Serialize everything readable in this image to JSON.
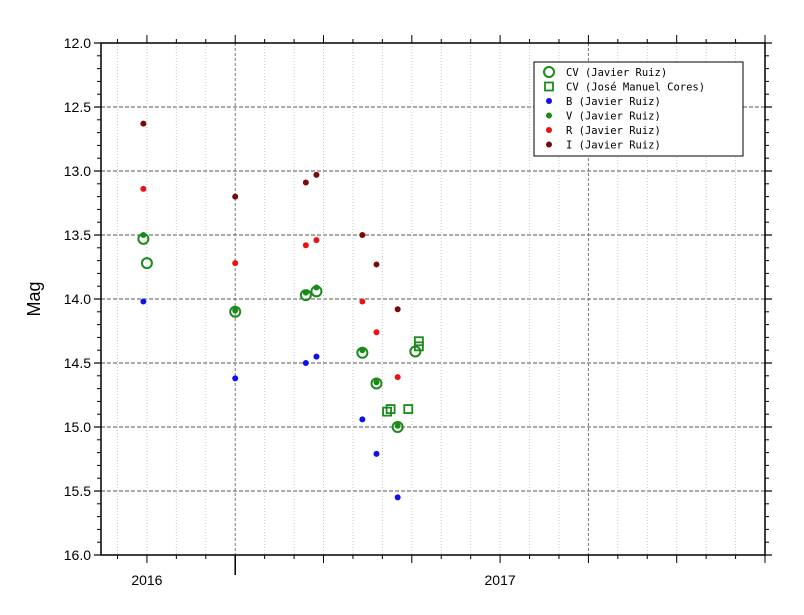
{
  "chart_data": {
    "type": "scatter",
    "title": "",
    "ylabel": "Mag",
    "xlabel": "",
    "y_inverted": true,
    "ylim": [
      12.0,
      16.0
    ],
    "y_ticks": [
      "12.0",
      "12.5",
      "13.0",
      "13.5",
      "14.0",
      "14.5",
      "15.0",
      "15.5",
      "16.0"
    ],
    "x_range_years": [
      2015.87,
      2017.75
    ],
    "x_tick_labels": [
      {
        "value": 2016.0,
        "label": "2016"
      },
      {
        "value": 2017.0,
        "label": "2017"
      }
    ],
    "grid": true,
    "legend_position": "top-right",
    "colors": {
      "cv": "#1a8a1a",
      "B": "#1010ee",
      "V": "#1a8a1a",
      "R": "#ee1010",
      "I": "#7a0a0a"
    },
    "series": [
      {
        "name": "CV (Javier Ruiz)",
        "marker": "open-circle",
        "color": "#1a8a1a",
        "points": [
          [
            2015.99,
            13.53
          ],
          [
            2016.0,
            13.72
          ],
          [
            2016.25,
            14.1
          ],
          [
            2016.45,
            13.97
          ],
          [
            2016.48,
            13.94
          ],
          [
            2016.61,
            14.42
          ],
          [
            2016.65,
            14.66
          ],
          [
            2016.71,
            15.0
          ],
          [
            2016.76,
            14.41
          ]
        ]
      },
      {
        "name": "CV (José Manuel Cores)",
        "marker": "open-square",
        "color": "#1a8a1a",
        "points": [
          [
            2016.68,
            14.88
          ],
          [
            2016.69,
            14.86
          ],
          [
            2016.74,
            14.86
          ],
          [
            2016.77,
            14.37
          ],
          [
            2016.77,
            14.33
          ]
        ]
      },
      {
        "name": "B (Javier Ruiz)",
        "marker": "dot",
        "color": "#1010ee",
        "points": [
          [
            2015.99,
            14.02
          ],
          [
            2016.25,
            14.62
          ],
          [
            2016.45,
            14.5
          ],
          [
            2016.48,
            14.45
          ],
          [
            2016.61,
            14.94
          ],
          [
            2016.65,
            15.21
          ],
          [
            2016.71,
            15.55
          ]
        ]
      },
      {
        "name": "V (Javier Ruiz)",
        "marker": "dot",
        "color": "#1a8a1a",
        "points": [
          [
            2015.99,
            13.5
          ],
          [
            2016.25,
            14.09
          ],
          [
            2016.45,
            13.95
          ],
          [
            2016.48,
            13.91
          ],
          [
            2016.61,
            14.4
          ],
          [
            2016.65,
            14.65
          ],
          [
            2016.71,
            14.99
          ]
        ]
      },
      {
        "name": "R (Javier Ruiz)",
        "marker": "dot",
        "color": "#ee1010",
        "points": [
          [
            2015.99,
            13.14
          ],
          [
            2016.25,
            13.72
          ],
          [
            2016.45,
            13.58
          ],
          [
            2016.48,
            13.54
          ],
          [
            2016.61,
            14.02
          ],
          [
            2016.65,
            14.26
          ],
          [
            2016.71,
            14.61
          ]
        ]
      },
      {
        "name": "I (Javier Ruiz)",
        "marker": "dot",
        "color": "#7a0a0a",
        "points": [
          [
            2015.99,
            12.63
          ],
          [
            2016.25,
            13.2
          ],
          [
            2016.45,
            13.09
          ],
          [
            2016.48,
            13.03
          ],
          [
            2016.61,
            13.5
          ],
          [
            2016.65,
            13.73
          ],
          [
            2016.71,
            14.08
          ]
        ]
      }
    ]
  }
}
